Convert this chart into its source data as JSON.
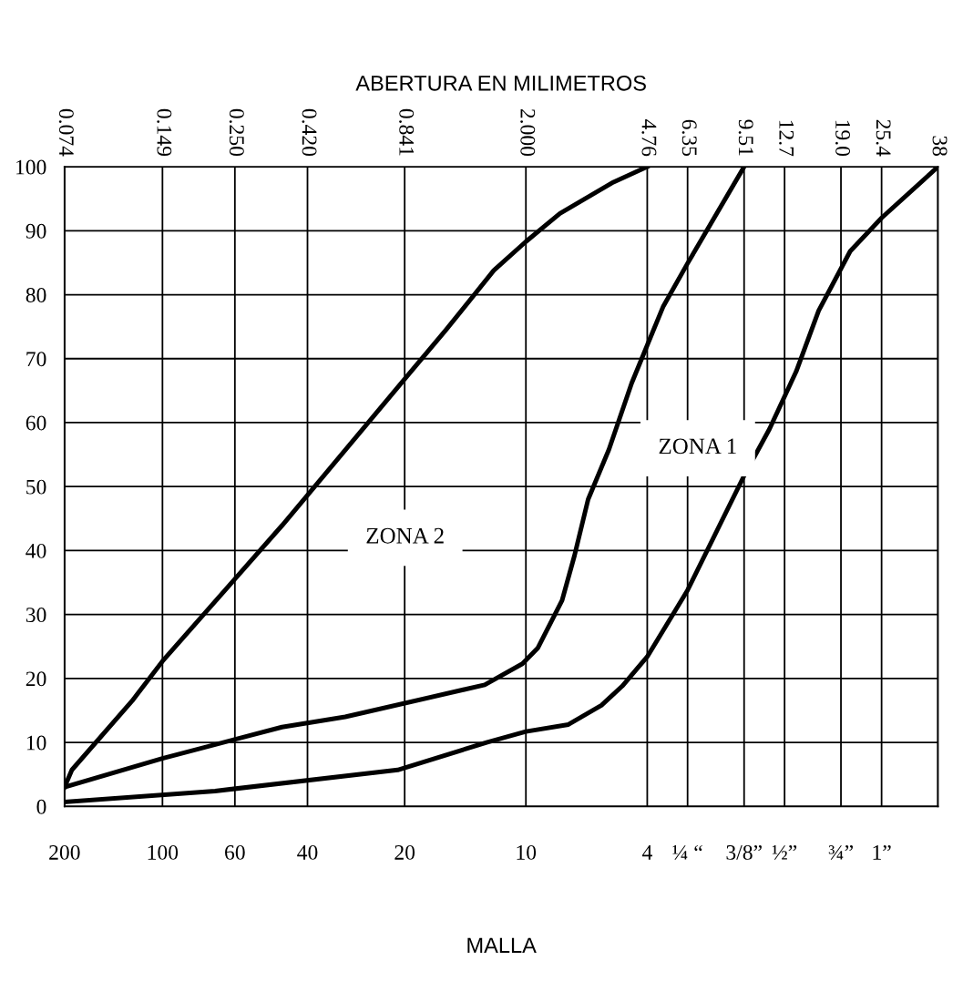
{
  "chart_data": {
    "type": "line",
    "xlabel": "ABERTURA EN MILIMETROS",
    "log": "x",
    "xlim": [
      0.074,
      38
    ],
    "ylim": [
      0,
      100
    ],
    "xticks": [
      {
        "value": 0.074,
        "label": "0.074"
      },
      {
        "value": 0.149,
        "label": "0.149"
      },
      {
        "value": 0.25,
        "label": "0.250"
      },
      {
        "value": 0.42,
        "label": "0.420"
      },
      {
        "value": 0.841,
        "label": "0.841"
      },
      {
        "value": 2.0,
        "label": "2.000"
      },
      4.76,
      6.35,
      9.51,
      12.7,
      {
        "value": 19,
        "label": "19.0"
      },
      25.4,
      38
    ],
    "yticks": [
      0,
      10,
      20,
      30,
      40,
      50,
      60,
      70,
      80,
      90,
      100
    ],
    "grid": true,
    "legend": false,
    "marker": "none",
    "line_style": "solid",
    "series": [
      {
        "color": "#000000",
        "x": [
          0.074,
          0.078,
          0.12,
          0.149,
          0.35,
          0.841,
          1.13,
          1.59,
          2.0,
          2.55,
          3.74,
          4.76
        ],
        "values": [
          3,
          5.7,
          16.5,
          22.7,
          43.9,
          66.8,
          74.5,
          83.8,
          88.3,
          92.7,
          97.6,
          100
        ]
      },
      {
        "color": "#000000",
        "x": [
          0.074,
          0.149,
          0.35,
          0.55,
          1.49,
          1.95,
          2.18,
          2.59,
          2.83,
          3.12,
          3.62,
          4.26,
          4.76,
          5.34,
          6.35,
          9.51
        ],
        "values": [
          3,
          7.5,
          12.4,
          14,
          19,
          22.3,
          24.8,
          32.2,
          39.2,
          48,
          55.8,
          66.2,
          72.1,
          78.2,
          84.9,
          100
        ]
      },
      {
        "color": "#000000",
        "x": [
          0.074,
          0.217,
          0.8,
          1.51,
          2.0,
          2.71,
          3.43,
          3.98,
          4.76,
          6.35,
          9.51,
          11.4,
          13.8,
          16.2,
          20.3,
          25.4,
          38
        ],
        "values": [
          0.7,
          2.4,
          5.7,
          10,
          11.7,
          12.8,
          15.8,
          18.8,
          23.4,
          33.8,
          51.7,
          59,
          68,
          77.5,
          86.8,
          92,
          100
        ]
      }
    ],
    "annotations": [
      "ZONA 2",
      "ZONA 1",
      "200",
      "100",
      "60",
      "40",
      "20",
      "10",
      "4",
      "¼ “",
      "3/8”",
      "½”",
      "¾”",
      "1”",
      "MALLA"
    ]
  }
}
